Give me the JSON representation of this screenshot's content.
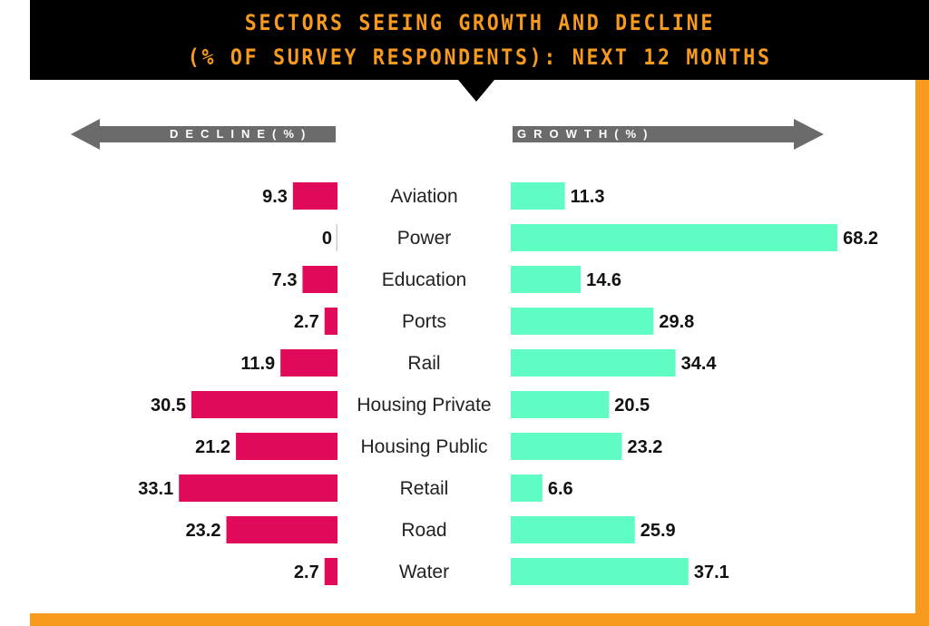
{
  "header": {
    "title_line1": "SECTORS SEEING GROWTH AND DECLINE",
    "title_line2": "(% OF SURVEY RESPONDENTS): NEXT 12 MONTHS"
  },
  "colors": {
    "decline": "#e0095a",
    "growth": "#5ffdc4",
    "accent": "#f79a1e",
    "arrow": "#6b6b6b"
  },
  "chart_data": {
    "type": "bar",
    "title": "SECTORS SEEING GROWTH AND DECLINE (% OF SURVEY RESPONDENTS): NEXT 12 MONTHS",
    "decline_label": "DECLINE(%)",
    "growth_label": "GROWTH(%)",
    "categories": [
      "Aviation",
      "Power",
      "Education",
      "Ports",
      "Rail",
      "Housing Private",
      "Housing Public",
      "Retail",
      "Road",
      "Water"
    ],
    "series": [
      {
        "name": "Decline",
        "values": [
          9.3,
          0,
          7.3,
          2.7,
          11.9,
          30.5,
          21.2,
          33.1,
          23.2,
          2.7
        ]
      },
      {
        "name": "Growth",
        "values": [
          11.3,
          68.2,
          14.6,
          29.8,
          34.4,
          20.5,
          23.2,
          6.6,
          25.9,
          37.1
        ]
      }
    ]
  }
}
